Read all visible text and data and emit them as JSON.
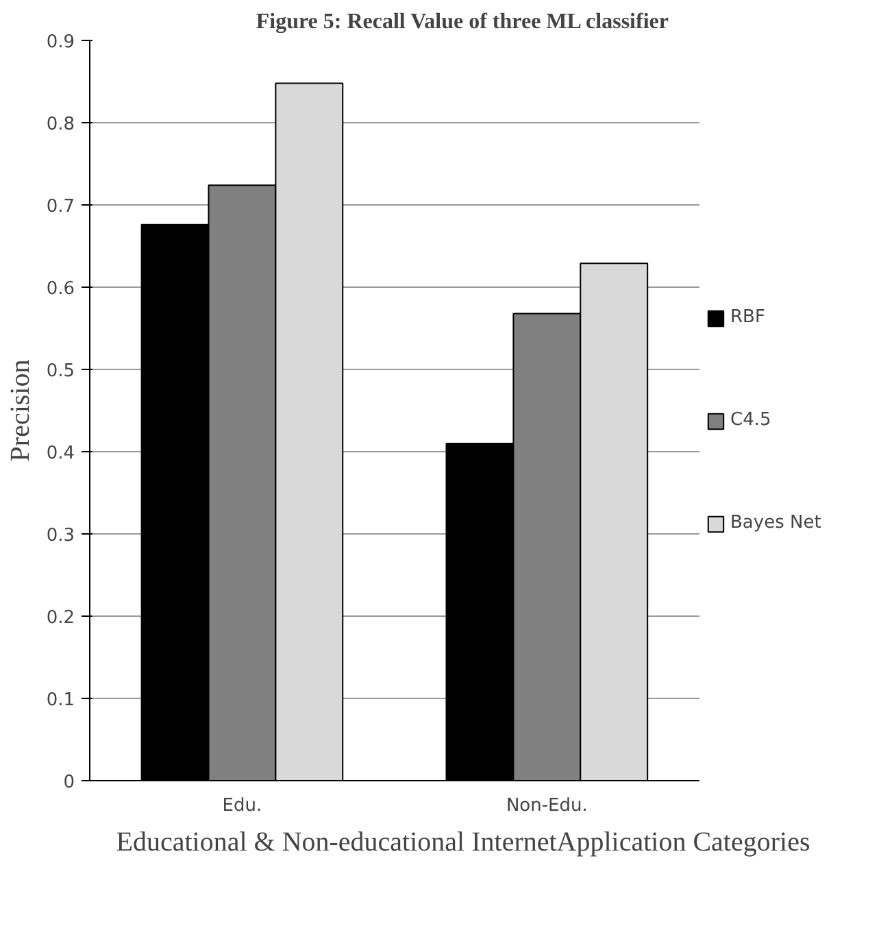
{
  "chart_data": {
    "type": "bar",
    "title": "Figure 5: Recall Value of three ML classifier",
    "xlabel": "Educational & Non-educational InternetApplication Categories",
    "ylabel": "Precision",
    "categories": [
      "Edu.",
      "Non-Edu."
    ],
    "series": [
      {
        "name": "RBF",
        "color": "#000000",
        "values": [
          0.676,
          0.41
        ]
      },
      {
        "name": "C4.5",
        "color": "#808080",
        "values": [
          0.724,
          0.568
        ]
      },
      {
        "name": "Bayes Net",
        "color": "#d9d9d9",
        "values": [
          0.848,
          0.629
        ]
      }
    ],
    "ylim": [
      0,
      0.9
    ],
    "yticks": [
      0,
      0.1,
      0.2,
      0.3,
      0.4,
      0.5,
      0.6,
      0.7,
      0.8,
      0.9
    ],
    "grid": "y",
    "legend": "right"
  }
}
